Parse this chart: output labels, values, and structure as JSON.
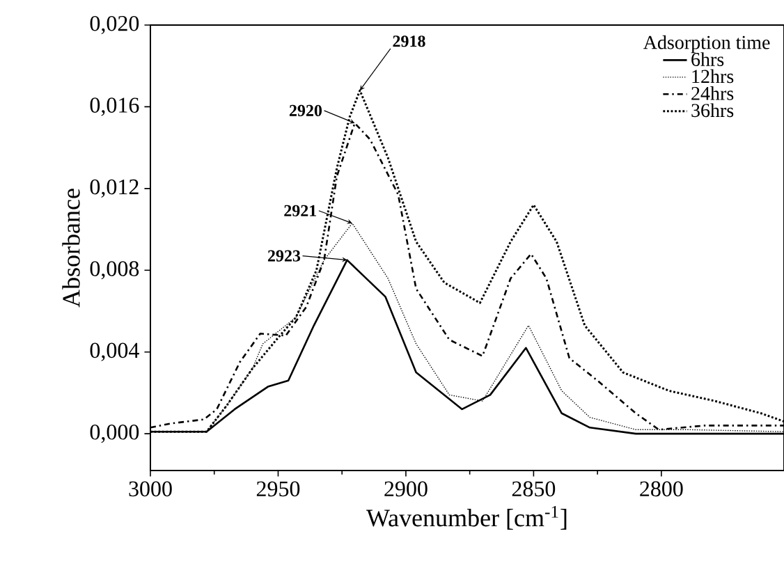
{
  "chart_data": {
    "type": "line",
    "xlabel": "Wavenumber [cm$^{-1}$]",
    "ylabel": "Absorbance",
    "legend_title": "Adsorption time",
    "legend": "top right",
    "xlim": [
      3000,
      2752
    ],
    "ylim": [
      -0.0018,
      0.02
    ],
    "xticks": [
      3000,
      2950,
      2900,
      2850,
      2800
    ],
    "yticks": [
      {
        "value": 0,
        "label": "0,000"
      },
      {
        "value": 0.004,
        "label": "0,004"
      },
      {
        "value": 0.008,
        "label": "0,008"
      },
      {
        "value": 0.012,
        "label": "0,012"
      },
      {
        "value": 0.016,
        "label": "0,016"
      },
      {
        "value": 0.02,
        "label": "0,020"
      }
    ],
    "annotations": [
      {
        "text": "2918",
        "x": 2918,
        "y": 0.0168
      },
      {
        "text": "2920",
        "x": 2920,
        "y": 0.0152
      },
      {
        "text": "2921",
        "x": 2921,
        "y": 0.0103
      },
      {
        "text": "2923",
        "x": 2923,
        "y": 0.0085
      }
    ],
    "series": [
      {
        "name": "6hrs",
        "color": "#000000",
        "line_style": "solid",
        "x": [
          3000,
          2978,
          2967,
          2954,
          2946,
          2936,
          2923,
          2908,
          2896,
          2878,
          2867,
          2853,
          2839,
          2828,
          2810,
          2792,
          2774,
          2752
        ],
        "values": [
          0.0001,
          0.0001,
          0.0012,
          0.0023,
          0.0026,
          0.0053,
          0.0085,
          0.0067,
          0.003,
          0.0012,
          0.0019,
          0.0042,
          0.001,
          0.0003,
          0.0,
          0.0,
          0.0,
          0.0
        ]
      },
      {
        "name": "12hrs",
        "color": "#000000",
        "line_style": "dotted",
        "x": [
          3000,
          2978,
          2970,
          2960,
          2956,
          2943,
          2932,
          2921,
          2907,
          2896,
          2883,
          2870,
          2852,
          2839,
          2828,
          2810,
          2790,
          2752
        ],
        "values": [
          0.0001,
          0.0001,
          0.0014,
          0.0032,
          0.0044,
          0.0057,
          0.0085,
          0.0103,
          0.0076,
          0.0044,
          0.0019,
          0.0016,
          0.0053,
          0.0021,
          0.0008,
          0.0002,
          0.0002,
          0.0001
        ]
      },
      {
        "name": "24hrs",
        "color": "#000000",
        "line_style": "dashdot",
        "x": [
          3000,
          2992,
          2979,
          2974,
          2965,
          2957,
          2947,
          2939,
          2932,
          2927,
          2920,
          2914,
          2903,
          2896,
          2883,
          2870,
          2859,
          2851,
          2845,
          2836,
          2825,
          2810,
          2801,
          2783,
          2752
        ],
        "values": [
          0.0003,
          0.0005,
          0.0007,
          0.0012,
          0.0035,
          0.0049,
          0.0048,
          0.0062,
          0.0085,
          0.0126,
          0.0152,
          0.0144,
          0.0117,
          0.0071,
          0.0046,
          0.0038,
          0.0076,
          0.0088,
          0.0076,
          0.0037,
          0.0026,
          0.001,
          0.0002,
          0.0004,
          0.0004
        ]
      },
      {
        "name": "36hrs",
        "color": "#000000",
        "line_style": "dashed",
        "x": [
          3000,
          2978,
          2970,
          2960,
          2950,
          2943,
          2935,
          2927,
          2922,
          2918,
          2907,
          2896,
          2885,
          2871,
          2859,
          2850,
          2841,
          2830,
          2815,
          2797,
          2779,
          2761,
          2752
        ],
        "values": [
          0.0001,
          0.0001,
          0.0014,
          0.0032,
          0.0047,
          0.0057,
          0.008,
          0.013,
          0.0155,
          0.0168,
          0.0135,
          0.0094,
          0.0074,
          0.0064,
          0.0094,
          0.0112,
          0.0094,
          0.0053,
          0.003,
          0.0021,
          0.0016,
          0.001,
          0.0006
        ]
      }
    ]
  }
}
